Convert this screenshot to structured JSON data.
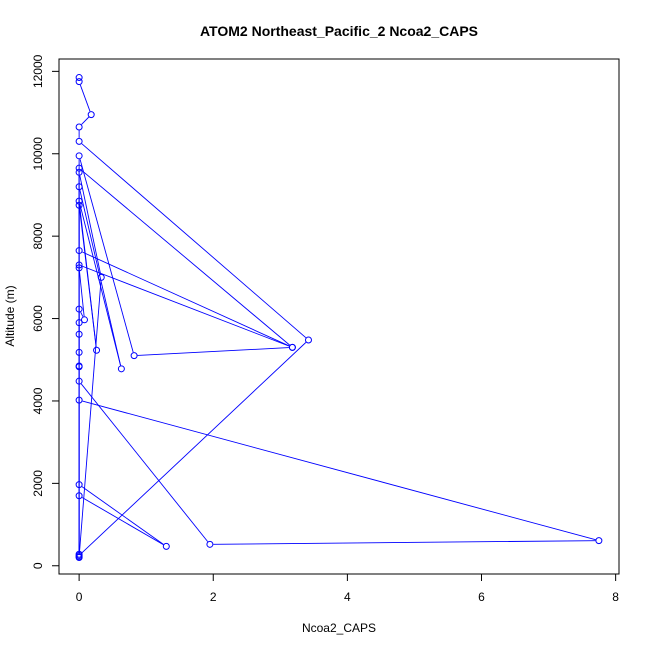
{
  "chart_data": {
    "type": "line",
    "title": "ATOM2 Northeast_Pacific_2 Ncoa2_CAPS",
    "xlabel": "Ncoa2_CAPS",
    "ylabel": "Altitude (m)",
    "xlim": [
      -0.3,
      8.05
    ],
    "ylim": [
      -200,
      12300
    ],
    "x_ticks": [
      0,
      2,
      4,
      6,
      8
    ],
    "y_ticks": [
      0,
      2000,
      4000,
      6000,
      8000,
      10000,
      12000
    ],
    "x_tick_labels": [
      "0",
      "2",
      "4",
      "6",
      "8"
    ],
    "y_tick_labels": [
      "0",
      "2000",
      "4000",
      "6000",
      "8000",
      "10000",
      "12000"
    ],
    "series_color": "#0000ff",
    "marker": "open-circle",
    "points": [
      {
        "x": 0.0,
        "y": 11850
      },
      {
        "x": 0.0,
        "y": 11750
      },
      {
        "x": 0.18,
        "y": 10950
      },
      {
        "x": 0.0,
        "y": 10650
      },
      {
        "x": 0.0,
        "y": 10300
      },
      {
        "x": 3.42,
        "y": 5480
      },
      {
        "x": 0.0,
        "y": 250
      },
      {
        "x": 0.0,
        "y": 9950
      },
      {
        "x": 0.82,
        "y": 5100
      },
      {
        "x": 3.18,
        "y": 5300
      },
      {
        "x": 0.0,
        "y": 9650
      },
      {
        "x": 0.0,
        "y": 200
      },
      {
        "x": 0.0,
        "y": 9550
      },
      {
        "x": 0.33,
        "y": 7000
      },
      {
        "x": 0.0,
        "y": 220
      },
      {
        "x": 0.0,
        "y": 9200
      },
      {
        "x": 0.63,
        "y": 4780
      },
      {
        "x": 0.0,
        "y": 8850
      },
      {
        "x": 0.26,
        "y": 5230
      },
      {
        "x": 0.0,
        "y": 8750
      },
      {
        "x": 0.0,
        "y": 7650
      },
      {
        "x": 3.18,
        "y": 5300
      },
      {
        "x": 0.0,
        "y": 7300
      },
      {
        "x": 0.0,
        "y": 7230
      },
      {
        "x": 0.08,
        "y": 5970
      },
      {
        "x": 0.0,
        "y": 6230
      },
      {
        "x": 0.0,
        "y": 5900
      },
      {
        "x": 0.0,
        "y": 5620
      },
      {
        "x": 0.0,
        "y": 5180
      },
      {
        "x": 0.0,
        "y": 4850
      },
      {
        "x": 0.0,
        "y": 4830
      },
      {
        "x": 0.0,
        "y": 4480
      },
      {
        "x": 1.95,
        "y": 520
      },
      {
        "x": 7.75,
        "y": 610
      },
      {
        "x": 0.0,
        "y": 4020
      },
      {
        "x": 0.0,
        "y": 1970
      },
      {
        "x": 1.3,
        "y": 470
      },
      {
        "x": 0.0,
        "y": 1700
      },
      {
        "x": 0.0,
        "y": 280
      }
    ]
  }
}
